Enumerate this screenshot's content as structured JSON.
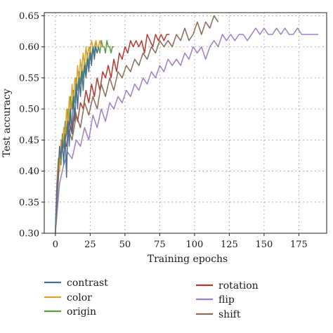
{
  "chart_data": {
    "type": "line",
    "title": "",
    "xlabel": "Training epochs",
    "ylabel": "Test accuracy",
    "xlim": [
      -8,
      195
    ],
    "ylim": [
      0.3,
      0.655
    ],
    "xticks": [
      0,
      25,
      50,
      75,
      100,
      125,
      150,
      175
    ],
    "yticks": [
      0.3,
      0.35,
      0.4,
      0.45,
      0.5,
      0.55,
      0.6,
      0.65
    ],
    "grid": true,
    "legend_position": "bottom",
    "series": [
      {
        "name": "contrast",
        "color": "#4a6e92",
        "x": [
          0,
          1,
          2,
          3,
          4,
          5,
          6,
          7,
          8,
          9,
          10,
          11,
          12,
          13,
          14,
          15,
          16,
          17,
          18,
          19,
          20,
          21,
          22,
          23,
          24,
          25,
          26,
          27,
          28,
          29,
          30,
          31
        ],
        "y": [
          0.3,
          0.37,
          0.4,
          0.44,
          0.42,
          0.45,
          0.41,
          0.46,
          0.39,
          0.48,
          0.44,
          0.5,
          0.46,
          0.52,
          0.48,
          0.54,
          0.5,
          0.55,
          0.52,
          0.56,
          0.53,
          0.57,
          0.55,
          0.58,
          0.56,
          0.59,
          0.57,
          0.6,
          0.58,
          0.6,
          0.59,
          0.6
        ]
      },
      {
        "name": "color",
        "color": "#e0a030",
        "x": [
          0,
          1,
          2,
          3,
          4,
          5,
          6,
          7,
          8,
          9,
          10,
          11,
          12,
          13,
          14,
          15,
          16,
          17,
          18,
          19,
          20,
          21,
          22,
          23,
          24,
          25,
          26,
          27,
          28,
          29,
          30,
          31,
          32,
          33,
          34
        ],
        "y": [
          0.3,
          0.38,
          0.42,
          0.4,
          0.45,
          0.43,
          0.47,
          0.45,
          0.5,
          0.47,
          0.52,
          0.49,
          0.54,
          0.51,
          0.55,
          0.53,
          0.57,
          0.54,
          0.58,
          0.56,
          0.59,
          0.57,
          0.6,
          0.58,
          0.6,
          0.59,
          0.61,
          0.6,
          0.6,
          0.61,
          0.6,
          0.6,
          0.61,
          0.6,
          0.6
        ]
      },
      {
        "name": "origin",
        "color": "#5c9a3c",
        "x": [
          0,
          1,
          2,
          3,
          4,
          5,
          6,
          7,
          8,
          9,
          10,
          11,
          12,
          13,
          14,
          15,
          16,
          17,
          18,
          19,
          20,
          21,
          22,
          23,
          24,
          25,
          26,
          27,
          28,
          29,
          30,
          31,
          32,
          33,
          34,
          35,
          36,
          37,
          38,
          39,
          40,
          41,
          42
        ],
        "y": [
          0.3,
          0.36,
          0.41,
          0.43,
          0.41,
          0.46,
          0.44,
          0.48,
          0.46,
          0.5,
          0.48,
          0.52,
          0.5,
          0.53,
          0.51,
          0.55,
          0.53,
          0.56,
          0.54,
          0.57,
          0.55,
          0.58,
          0.56,
          0.59,
          0.57,
          0.6,
          0.58,
          0.6,
          0.59,
          0.61,
          0.6,
          0.6,
          0.59,
          0.61,
          0.6,
          0.6,
          0.59,
          0.61,
          0.6,
          0.6,
          0.59,
          0.6,
          0.6
        ]
      },
      {
        "name": "rotation",
        "color": "#b23a30",
        "x": [
          0,
          2,
          4,
          6,
          8,
          10,
          12,
          14,
          16,
          18,
          20,
          22,
          24,
          26,
          28,
          30,
          32,
          34,
          36,
          38,
          40,
          42,
          44,
          46,
          48,
          50,
          52,
          54,
          56,
          58,
          60,
          62,
          64,
          66,
          68,
          70,
          72,
          74,
          76,
          78,
          80,
          82
        ],
        "y": [
          0.3,
          0.4,
          0.43,
          0.45,
          0.44,
          0.48,
          0.46,
          0.5,
          0.48,
          0.51,
          0.5,
          0.53,
          0.51,
          0.54,
          0.52,
          0.55,
          0.53,
          0.56,
          0.55,
          0.57,
          0.55,
          0.58,
          0.56,
          0.59,
          0.58,
          0.6,
          0.59,
          0.61,
          0.6,
          0.61,
          0.6,
          0.61,
          0.59,
          0.62,
          0.61,
          0.6,
          0.62,
          0.61,
          0.62,
          0.61,
          0.62,
          0.62
        ]
      },
      {
        "name": "flip",
        "color": "#9b7fc8",
        "x": [
          0,
          3,
          6,
          9,
          12,
          15,
          18,
          21,
          24,
          27,
          30,
          33,
          36,
          39,
          42,
          45,
          48,
          51,
          54,
          57,
          60,
          63,
          66,
          69,
          72,
          75,
          78,
          81,
          84,
          87,
          90,
          93,
          96,
          99,
          102,
          105,
          108,
          111,
          114,
          117,
          120,
          123,
          126,
          129,
          132,
          135,
          138,
          141,
          144,
          147,
          150,
          153,
          156,
          159,
          162,
          165,
          168,
          171,
          174,
          177,
          180,
          183,
          186,
          189
        ],
        "y": [
          0.3,
          0.38,
          0.41,
          0.43,
          0.42,
          0.45,
          0.44,
          0.47,
          0.45,
          0.49,
          0.47,
          0.5,
          0.48,
          0.51,
          0.5,
          0.52,
          0.51,
          0.53,
          0.52,
          0.54,
          0.53,
          0.55,
          0.54,
          0.56,
          0.55,
          0.57,
          0.56,
          0.58,
          0.57,
          0.58,
          0.57,
          0.59,
          0.58,
          0.6,
          0.59,
          0.6,
          0.58,
          0.6,
          0.61,
          0.6,
          0.62,
          0.61,
          0.62,
          0.61,
          0.62,
          0.62,
          0.61,
          0.62,
          0.63,
          0.62,
          0.63,
          0.62,
          0.62,
          0.63,
          0.62,
          0.63,
          0.62,
          0.62,
          0.63,
          0.62,
          0.62,
          0.62,
          0.62,
          0.62
        ]
      },
      {
        "name": "shift",
        "color": "#8b6a55",
        "x": [
          0,
          3,
          6,
          9,
          12,
          15,
          18,
          21,
          24,
          27,
          30,
          33,
          36,
          39,
          42,
          45,
          48,
          51,
          54,
          57,
          60,
          63,
          66,
          69,
          72,
          75,
          78,
          81,
          84,
          87,
          90,
          93,
          96,
          99,
          102,
          105,
          108,
          111,
          114,
          117
        ],
        "y": [
          0.3,
          0.42,
          0.44,
          0.47,
          0.45,
          0.49,
          0.47,
          0.51,
          0.49,
          0.52,
          0.5,
          0.54,
          0.52,
          0.55,
          0.53,
          0.56,
          0.55,
          0.57,
          0.56,
          0.58,
          0.57,
          0.59,
          0.58,
          0.6,
          0.59,
          0.61,
          0.6,
          0.61,
          0.6,
          0.62,
          0.61,
          0.63,
          0.61,
          0.62,
          0.64,
          0.62,
          0.64,
          0.63,
          0.65,
          0.64
        ]
      }
    ]
  }
}
